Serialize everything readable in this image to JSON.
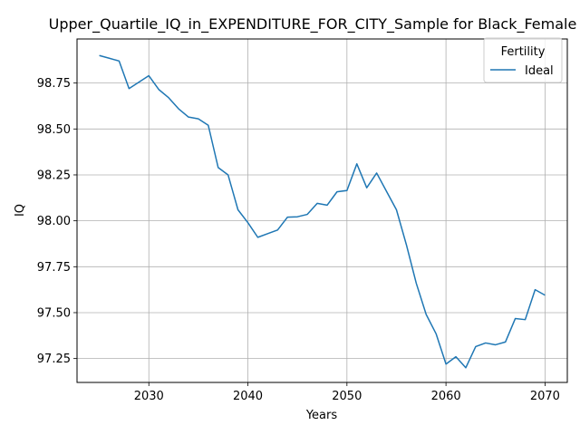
{
  "chart_data": {
    "type": "line",
    "title": "Upper_Quartile_IQ_in_EXPENDITURE_FOR_CITY_Sample for Black_Female",
    "xlabel": "Years",
    "ylabel": "IQ",
    "xlim": [
      2022.75,
      2072.25
    ],
    "ylim": [
      97.12,
      98.99
    ],
    "xticks": [
      2030,
      2040,
      2050,
      2060,
      2070
    ],
    "yticks": [
      97.25,
      97.5,
      97.75,
      98.0,
      98.25,
      98.5,
      98.75
    ],
    "xtick_labels": [
      "2030",
      "2040",
      "2050",
      "2060",
      "2070"
    ],
    "ytick_labels": [
      "97.25",
      "97.50",
      "97.75",
      "98.00",
      "98.25",
      "98.50",
      "98.75"
    ],
    "grid": true,
    "legend": {
      "title": "Fertility",
      "placement": "top-right"
    },
    "series": [
      {
        "name": "Ideal",
        "color": "#1f77b4",
        "x": [
          2025,
          2026,
          2027,
          2028,
          2029,
          2030,
          2031,
          2032,
          2033,
          2034,
          2035,
          2036,
          2037,
          2038,
          2039,
          2040,
          2041,
          2042,
          2043,
          2044,
          2045,
          2046,
          2047,
          2048,
          2049,
          2050,
          2051,
          2052,
          2053,
          2054,
          2055,
          2056,
          2057,
          2058,
          2059,
          2060,
          2061,
          2062,
          2063,
          2064,
          2065,
          2066,
          2067,
          2068,
          2069,
          2070
        ],
        "values": [
          98.9,
          98.885,
          98.87,
          98.72,
          98.755,
          98.79,
          98.715,
          98.67,
          98.61,
          98.565,
          98.555,
          98.52,
          98.29,
          98.25,
          98.06,
          97.99,
          97.91,
          97.93,
          97.95,
          98.02,
          98.022,
          98.035,
          98.095,
          98.085,
          98.158,
          98.165,
          98.31,
          98.18,
          98.26,
          98.16,
          98.06,
          97.87,
          97.66,
          97.49,
          97.385,
          97.22,
          97.26,
          97.2,
          97.315,
          97.335,
          97.325,
          97.34,
          97.468,
          97.462,
          97.625,
          97.595
        ]
      }
    ]
  }
}
